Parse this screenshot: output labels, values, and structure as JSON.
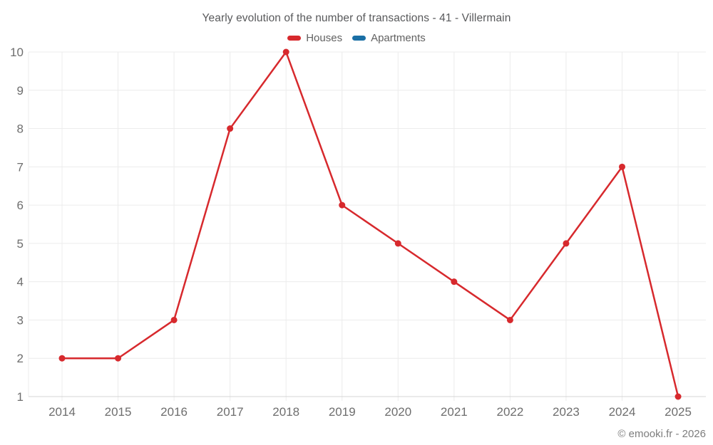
{
  "header": {
    "title": "Yearly evolution of the number of transactions - 41 - Villermain"
  },
  "legend": [
    {
      "label": "Houses",
      "color": "#d7292d",
      "icon": "houses-series-swatch"
    },
    {
      "label": "Apartments",
      "color": "#1a6fa5",
      "icon": "apartments-series-swatch"
    }
  ],
  "footer": {
    "credit": "© emooki.fr - 2026"
  },
  "chart_data": {
    "type": "line",
    "title": "Yearly evolution of the number of transactions - 41 - Villermain",
    "categories": [
      "2014",
      "2015",
      "2016",
      "2017",
      "2018",
      "2019",
      "2020",
      "2021",
      "2022",
      "2023",
      "2024",
      "2025"
    ],
    "series": [
      {
        "name": "Houses",
        "color": "#d7292d",
        "values": [
          2,
          2,
          3,
          8,
          10,
          6,
          5,
          4,
          3,
          5,
          7,
          1
        ]
      },
      {
        "name": "Apartments",
        "color": "#1a6fa5",
        "values": []
      }
    ],
    "xlabel": "",
    "ylabel": "",
    "ylim": [
      1,
      10
    ],
    "yticks": [
      1,
      2,
      3,
      4,
      5,
      6,
      7,
      8,
      9,
      10
    ],
    "grid": true,
    "legend_position": "top",
    "colors": {
      "gridline": "#ececec",
      "baseline": "#d4d4d4",
      "axis_label": "#6e6e6e"
    }
  }
}
